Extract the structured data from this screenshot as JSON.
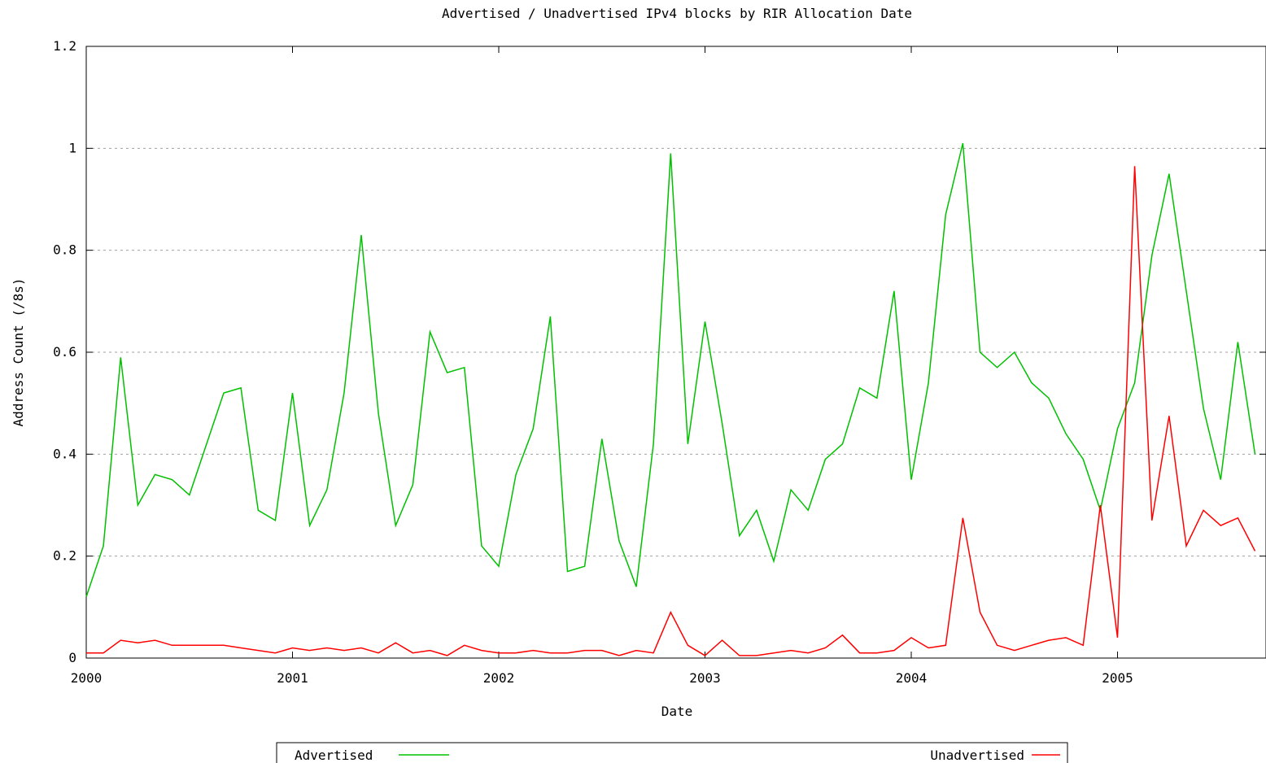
{
  "chart_data": {
    "type": "line",
    "title": "Advertised / Unadvertised IPv4 blocks by RIR Allocation Date",
    "xlabel": "Date",
    "ylabel": "Address Count (/8s)",
    "xlim": [
      "2000-01",
      "2005-09"
    ],
    "ylim": [
      0,
      1.2
    ],
    "y_ticks": [
      "0",
      "0.2",
      "0.4",
      "0.6",
      "0.8",
      "1",
      "1.2"
    ],
    "x_ticks": [
      "2000",
      "2001",
      "2002",
      "2003",
      "2004",
      "2005"
    ],
    "grid": true,
    "legend_position": "bottom",
    "series": [
      {
        "name": "Advertised",
        "color": "#00c000",
        "x": [
          "2000-01",
          "2000-02",
          "2000-03",
          "2000-04",
          "2000-05",
          "2000-06",
          "2000-07",
          "2000-08",
          "2000-09",
          "2000-10",
          "2000-11",
          "2000-12",
          "2001-01",
          "2001-02",
          "2001-03",
          "2001-04",
          "2001-05",
          "2001-06",
          "2001-07",
          "2001-08",
          "2001-09",
          "2001-10",
          "2001-11",
          "2001-12",
          "2002-01",
          "2002-02",
          "2002-03",
          "2002-04",
          "2002-05",
          "2002-06",
          "2002-07",
          "2002-08",
          "2002-09",
          "2002-10",
          "2002-11",
          "2002-12",
          "2003-01",
          "2003-02",
          "2003-03",
          "2003-04",
          "2003-05",
          "2003-06",
          "2003-07",
          "2003-08",
          "2003-09",
          "2003-10",
          "2003-11",
          "2003-12",
          "2004-01",
          "2004-02",
          "2004-03",
          "2004-04",
          "2004-05",
          "2004-06",
          "2004-07",
          "2004-08",
          "2004-09",
          "2004-10",
          "2004-11",
          "2004-12",
          "2005-01",
          "2005-02",
          "2005-03",
          "2005-04",
          "2005-05",
          "2005-06",
          "2005-07",
          "2005-08",
          "2005-09"
        ],
        "y": [
          0.12,
          0.22,
          0.59,
          0.3,
          0.36,
          0.35,
          0.32,
          0.42,
          0.52,
          0.53,
          0.29,
          0.27,
          0.52,
          0.26,
          0.33,
          0.52,
          0.83,
          0.48,
          0.26,
          0.34,
          0.64,
          0.56,
          0.57,
          0.22,
          0.18,
          0.36,
          0.45,
          0.67,
          0.17,
          0.18,
          0.43,
          0.23,
          0.14,
          0.42,
          0.99,
          0.42,
          0.66,
          0.46,
          0.24,
          0.29,
          0.19,
          0.33,
          0.29,
          0.39,
          0.42,
          0.53,
          0.51,
          0.72,
          0.35,
          0.54,
          0.87,
          1.01,
          0.6,
          0.57,
          0.6,
          0.54,
          0.51,
          0.44,
          0.39,
          0.29,
          0.45,
          0.54,
          0.79,
          0.95,
          0.72,
          0.49,
          0.35,
          0.62,
          0.4
        ]
      },
      {
        "name": "Unadvertised",
        "color": "#ff0000",
        "x": [
          "2000-01",
          "2000-02",
          "2000-03",
          "2000-04",
          "2000-05",
          "2000-06",
          "2000-07",
          "2000-08",
          "2000-09",
          "2000-10",
          "2000-11",
          "2000-12",
          "2001-01",
          "2001-02",
          "2001-03",
          "2001-04",
          "2001-05",
          "2001-06",
          "2001-07",
          "2001-08",
          "2001-09",
          "2001-10",
          "2001-11",
          "2001-12",
          "2002-01",
          "2002-02",
          "2002-03",
          "2002-04",
          "2002-05",
          "2002-06",
          "2002-07",
          "2002-08",
          "2002-09",
          "2002-10",
          "2002-11",
          "2002-12",
          "2003-01",
          "2003-02",
          "2003-03",
          "2003-04",
          "2003-05",
          "2003-06",
          "2003-07",
          "2003-08",
          "2003-09",
          "2003-10",
          "2003-11",
          "2003-12",
          "2004-01",
          "2004-02",
          "2004-03",
          "2004-04",
          "2004-05",
          "2004-06",
          "2004-07",
          "2004-08",
          "2004-09",
          "2004-10",
          "2004-11",
          "2004-12",
          "2005-01",
          "2005-02",
          "2005-03",
          "2005-04",
          "2005-05",
          "2005-06",
          "2005-07",
          "2005-08",
          "2005-09"
        ],
        "y": [
          0.01,
          0.01,
          0.035,
          0.03,
          0.035,
          0.025,
          0.025,
          0.025,
          0.025,
          0.02,
          0.015,
          0.01,
          0.02,
          0.015,
          0.02,
          0.015,
          0.02,
          0.01,
          0.03,
          0.01,
          0.015,
          0.005,
          0.025,
          0.015,
          0.01,
          0.01,
          0.015,
          0.01,
          0.01,
          0.015,
          0.015,
          0.005,
          0.015,
          0.01,
          0.09,
          0.025,
          0.005,
          0.035,
          0.005,
          0.005,
          0.01,
          0.015,
          0.01,
          0.02,
          0.045,
          0.01,
          0.01,
          0.015,
          0.04,
          0.02,
          0.025,
          0.275,
          0.09,
          0.025,
          0.015,
          0.025,
          0.035,
          0.04,
          0.025,
          0.3,
          0.04,
          0.965,
          0.27,
          0.475,
          0.22,
          0.29,
          0.26,
          0.275,
          0.21
        ]
      }
    ]
  }
}
